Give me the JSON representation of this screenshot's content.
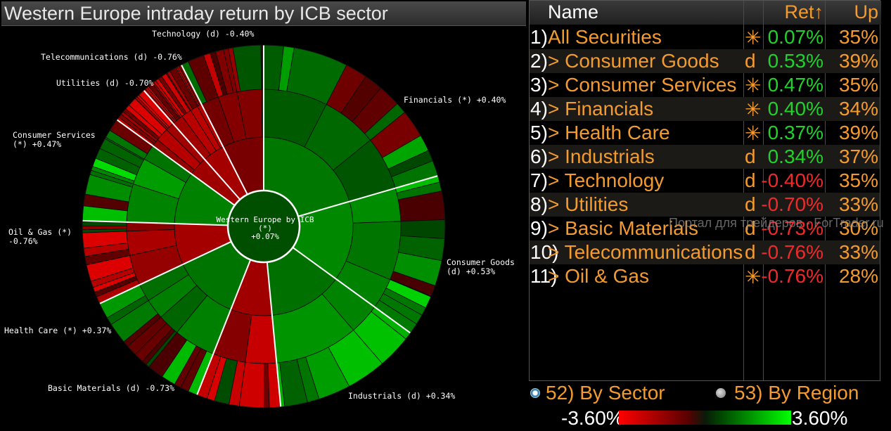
{
  "chart": {
    "title": "Western Europe intraday return by ICB sector",
    "center_label": "Western Europe by ICB (*)",
    "center_value": "+0.07%",
    "sector_labels": [
      {
        "text": "Technology (d) -0.40%"
      },
      {
        "text": "Telecommunications (d) -0.76%"
      },
      {
        "text": "Utilities (d) -0.70%"
      },
      {
        "text": "Consumer Services",
        "line2": "(*) +0.47%"
      },
      {
        "text": "Oil & Gas (*)",
        "line2": "-0.76%"
      },
      {
        "text": "Health Care (*) +0.37%"
      },
      {
        "text": "Basic Materials (d) -0.73%"
      },
      {
        "text": "Industrials (d) +0.34%"
      },
      {
        "text": "Consumer Goods",
        "line2": "(d) +0.53%"
      },
      {
        "text": "Financials (*) +0.40%"
      }
    ]
  },
  "chart_data": {
    "type": "sunburst",
    "title": "Western Europe intraday return by ICB sector",
    "root": {
      "name": "Western Europe by ICB (*)",
      "return_pct": 0.07
    },
    "sectors": [
      {
        "name": "Financials",
        "flag": "*",
        "return_pct": 0.4,
        "share": 0.205
      },
      {
        "name": "Consumer Goods",
        "flag": "d",
        "return_pct": 0.53,
        "share": 0.145
      },
      {
        "name": "Industrials",
        "flag": "d",
        "return_pct": 0.34,
        "share": 0.135
      },
      {
        "name": "Basic Materials",
        "flag": "d",
        "return_pct": -0.73,
        "share": 0.075
      },
      {
        "name": "Health Care",
        "flag": "*",
        "return_pct": 0.37,
        "share": 0.12
      },
      {
        "name": "Oil & Gas",
        "flag": "*",
        "return_pct": -0.76,
        "share": 0.075
      },
      {
        "name": "Consumer Services",
        "flag": "*",
        "return_pct": 0.47,
        "share": 0.095
      },
      {
        "name": "Utilities",
        "flag": "d",
        "return_pct": -0.7,
        "share": 0.035
      },
      {
        "name": "Telecommunications",
        "flag": "d",
        "return_pct": -0.76,
        "share": 0.04
      },
      {
        "name": "Technology",
        "flag": "d",
        "return_pct": -0.4,
        "share": 0.075
      }
    ],
    "color_scale": {
      "min_pct": -3.6,
      "max_pct": 3.6,
      "low": "#ff0000",
      "high": "#00ff00"
    }
  },
  "table": {
    "headers": {
      "name": "Name",
      "ret": "Ret",
      "up": "Up"
    },
    "sort_indicator": "↑",
    "rows": [
      {
        "idx": "1)",
        "name": "All Securities",
        "flag": "✳",
        "ret": "0.07%",
        "up": "35%",
        "sign": "pos"
      },
      {
        "idx": "2)",
        "name": "> Consumer Goods",
        "flag": "d",
        "ret": "0.53%",
        "up": "39%",
        "sign": "pos"
      },
      {
        "idx": "3)",
        "name": "> Consumer Services",
        "flag": "✳",
        "ret": "0.47%",
        "up": "35%",
        "sign": "pos"
      },
      {
        "idx": "4)",
        "name": "> Financials",
        "flag": "✳",
        "ret": "0.40%",
        "up": "34%",
        "sign": "pos"
      },
      {
        "idx": "5)",
        "name": "> Health Care",
        "flag": "✳",
        "ret": "0.37%",
        "up": "39%",
        "sign": "pos"
      },
      {
        "idx": "6)",
        "name": "> Industrials",
        "flag": "d",
        "ret": "0.34%",
        "up": "37%",
        "sign": "pos"
      },
      {
        "idx": "7)",
        "name": "> Technology",
        "flag": "d",
        "ret": "-0.40%",
        "up": "35%",
        "sign": "neg"
      },
      {
        "idx": "8)",
        "name": "> Utilities",
        "flag": "d",
        "ret": "-0.70%",
        "up": "33%",
        "sign": "neg"
      },
      {
        "idx": "9)",
        "name": "> Basic Materials",
        "flag": "d",
        "ret": "-0.73%",
        "up": "30%",
        "sign": "neg"
      },
      {
        "idx": "10)",
        "name": "> Telecommunications",
        "flag": "d",
        "ret": "-0.76%",
        "up": "33%",
        "sign": "neg"
      },
      {
        "idx": "11)",
        "name": "> Oil & Gas",
        "flag": "✳",
        "ret": "-0.76%",
        "up": "28%",
        "sign": "neg"
      }
    ]
  },
  "watermark": "Портал для трейдеров - ForTrader.ru",
  "controls": {
    "by_sector": "52)  By Sector",
    "by_region": "53)  By Region",
    "scale_min": "-3.60%",
    "scale_max": "3.60%"
  },
  "colors": {
    "positive": "#21d12c",
    "negative": "#f02a2a",
    "accent": "#f39b2f"
  }
}
